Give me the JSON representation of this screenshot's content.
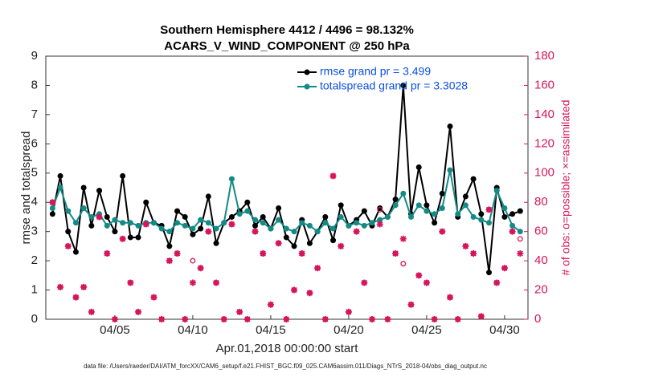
{
  "chart_data": {
    "type": "line",
    "title": "Southern Hemisphere 4412 / 4496 = 98.132%",
    "subtitle": "ACARS_V_WIND_COMPONENT @ 250 hPa",
    "xlabel": "Apr.01,2018 00:00:00 start",
    "ylabel": "rmse and totalspread",
    "y2label": "# of obs: o=possible; ×=assimilated",
    "footnote": "data file: /Users/raeder/DAI/ATM_forcXX/CAM6_setup/f.e21.FHIST_BGC.f09_025.CAM6assim.011/Diags_NTrS_2018-04/obs_diag_output.nc",
    "xlim": [
      0.57,
      31.5
    ],
    "xticks": [
      {
        "value": 5,
        "label": "04/05"
      },
      {
        "value": 10,
        "label": "04/10"
      },
      {
        "value": 15,
        "label": "04/15"
      },
      {
        "value": 20,
        "label": "04/20"
      },
      {
        "value": 25,
        "label": "04/25"
      },
      {
        "value": 30,
        "label": "04/30"
      }
    ],
    "ylim": [
      0,
      9
    ],
    "yticks": [
      0,
      1,
      2,
      3,
      4,
      5,
      6,
      7,
      8,
      9
    ],
    "y2lim": [
      0,
      180
    ],
    "y2ticks": [
      0,
      20,
      40,
      60,
      80,
      100,
      120,
      140,
      160,
      180
    ],
    "x": [
      1,
      1.5,
      2,
      2.5,
      3,
      3.5,
      4,
      4.5,
      5,
      5.5,
      6,
      6.5,
      7,
      7.5,
      8,
      8.5,
      9,
      9.5,
      10,
      10.5,
      11,
      11.5,
      12,
      12.5,
      13,
      13.5,
      14,
      14.5,
      15,
      15.5,
      16,
      16.5,
      17,
      17.5,
      18,
      18.5,
      19,
      19.5,
      20,
      20.5,
      21,
      21.5,
      22,
      22.5,
      23,
      23.5,
      24,
      24.5,
      25,
      25.5,
      26,
      26.5,
      27,
      27.5,
      28,
      28.5,
      29,
      29.5,
      30,
      30.5,
      31
    ],
    "series": [
      {
        "name": "rmse grand pr = 3.499",
        "color": "#000000",
        "marker": "dot",
        "values": [
          3.6,
          4.9,
          3.0,
          2.3,
          4.5,
          3.2,
          4.4,
          3.5,
          3.0,
          4.9,
          2.8,
          2.8,
          4.0,
          3.3,
          3.2,
          2.5,
          3.7,
          3.5,
          2.9,
          3.1,
          4.2,
          2.6,
          3.3,
          3.5,
          3.7,
          4.0,
          3.2,
          3.5,
          3.1,
          3.8,
          2.8,
          2.5,
          3.4,
          2.6,
          3.0,
          3.5,
          2.7,
          3.9,
          3.2,
          3.4,
          3.7,
          3.2,
          3.8,
          3.5,
          4.1,
          8.0,
          3.6,
          5.2,
          3.9,
          3.3,
          4.3,
          6.6,
          3.5,
          4.2,
          4.8,
          3.6,
          1.6,
          4.5,
          3.5,
          3.6,
          3.7
        ]
      },
      {
        "name": "totalspread grand pr = 3.3028",
        "color": "#138a86",
        "marker": "dot",
        "values": [
          3.8,
          4.5,
          3.7,
          3.3,
          3.8,
          3.5,
          3.6,
          3.2,
          3.4,
          3.3,
          3.3,
          3.2,
          3.3,
          3.3,
          3.1,
          3.0,
          3.3,
          3.2,
          3.1,
          3.4,
          3.3,
          3.1,
          3.3,
          4.8,
          3.6,
          3.7,
          3.4,
          3.3,
          3.1,
          3.4,
          3.1,
          3.0,
          3.3,
          3.2,
          3.0,
          3.3,
          3.1,
          3.5,
          3.2,
          3.3,
          3.2,
          3.3,
          3.4,
          3.5,
          3.9,
          4.3,
          3.5,
          3.9,
          3.7,
          3.6,
          3.8,
          5.1,
          3.6,
          3.9,
          3.5,
          3.4,
          3.3,
          4.4,
          3.8,
          3.2,
          3.0
        ]
      },
      {
        "color": "#d6155a",
        "axis": "y2",
        "marker": "circle",
        "values": [
          80,
          22,
          50,
          15,
          22,
          5,
          70,
          45,
          0,
          55,
          25,
          5,
          65,
          15,
          0,
          40,
          45,
          0,
          40,
          35,
          60,
          25,
          0,
          65,
          5,
          0,
          60,
          45,
          10,
          52,
          0,
          20,
          45,
          18,
          35,
          0,
          98,
          50,
          5,
          60,
          25,
          0,
          75,
          0,
          45,
          38,
          10,
          30,
          25,
          0,
          60,
          15,
          0,
          50,
          45,
          2,
          75,
          25,
          35,
          60,
          55
        ]
      },
      {
        "color": "#d6155a",
        "axis": "y2",
        "marker": "star",
        "values": [
          80,
          22,
          50,
          15,
          22,
          5,
          70,
          45,
          0,
          55,
          25,
          5,
          65,
          15,
          0,
          40,
          45,
          0,
          25,
          35,
          60,
          25,
          0,
          65,
          5,
          0,
          60,
          45,
          10,
          52,
          0,
          20,
          45,
          18,
          35,
          0,
          98,
          50,
          5,
          60,
          25,
          0,
          65,
          0,
          45,
          55,
          10,
          30,
          25,
          0,
          60,
          15,
          0,
          50,
          45,
          2,
          75,
          25,
          35,
          60,
          45
        ]
      }
    ]
  }
}
